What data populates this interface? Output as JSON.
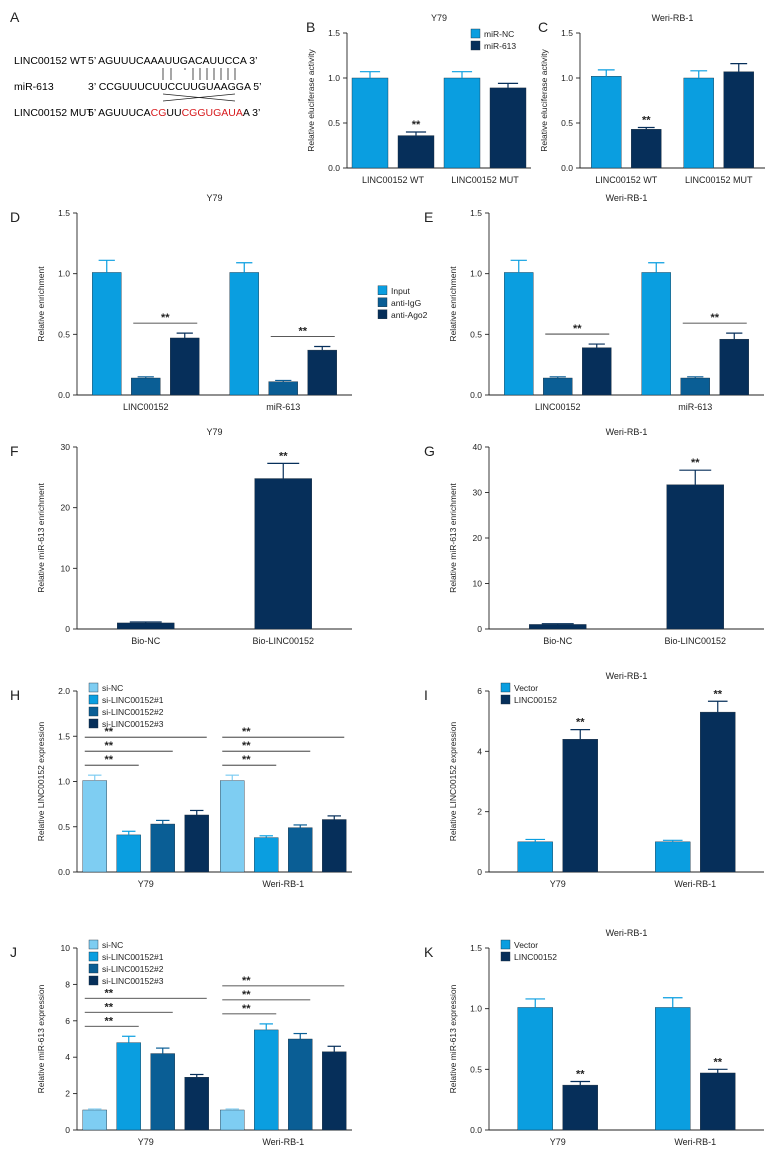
{
  "colors": {
    "light": "#7ecdf2",
    "blue": "#0a9ee0",
    "mid": "#0a5e95",
    "navy": "#062f5a",
    "red": "#d7191c"
  },
  "panelA": {
    "label": "A",
    "rows": [
      {
        "name": "LINC00152 WT",
        "seq": [
          {
            "t": "5’ AGUUUCAAAUUGACAUUCCA 3’",
            "red": false
          }
        ]
      },
      {
        "name": "miR-613",
        "seq": [
          {
            "t": "3’ CCGUUUCUUCCUUGUAAGGA 5’",
            "red": false
          }
        ]
      },
      {
        "name": "LINC00152 MUT",
        "seq": [
          {
            "t": "5’ AGUUUCA",
            "red": false
          },
          {
            "t": "CG",
            "red": true
          },
          {
            "t": "UU",
            "red": false
          },
          {
            "t": "CGGUGAUA",
            "red": true
          },
          {
            "t": "A 3’",
            "red": false
          }
        ]
      }
    ]
  },
  "chart_data": [
    {
      "id": "B",
      "type": "bar",
      "title": "Y79",
      "ylabel": "Relative eluciferase activity",
      "ylim": [
        0,
        1.5
      ],
      "yticks": [
        "0.0",
        "0.5",
        "1.0",
        "1.5"
      ],
      "categories": [
        "LINC00152 WT",
        "LINC00152 MUT"
      ],
      "legend": "top-right",
      "series": [
        {
          "name": "miR-NC",
          "color": "blue",
          "values": [
            1.0,
            1.0
          ],
          "errors": [
            0.07,
            0.07
          ]
        },
        {
          "name": "miR-613",
          "color": "navy",
          "values": [
            0.36,
            0.89
          ],
          "errors": [
            0.04,
            0.05
          ]
        }
      ],
      "annotations": [
        {
          "group": 0,
          "series": 1,
          "text": "**"
        }
      ]
    },
    {
      "id": "C",
      "type": "bar",
      "title": "Weri-RB-1",
      "ylabel": "Relative eluciferase activity",
      "ylim": [
        0,
        1.5
      ],
      "yticks": [
        "0.0",
        "0.5",
        "1.0",
        "1.5"
      ],
      "categories": [
        "LINC00152 WT",
        "LINC00152 MUT"
      ],
      "legend": "none",
      "series": [
        {
          "name": "miR-NC",
          "color": "blue",
          "values": [
            1.02,
            1.0
          ],
          "errors": [
            0.07,
            0.08
          ]
        },
        {
          "name": "miR-613",
          "color": "navy",
          "values": [
            0.43,
            1.07
          ],
          "errors": [
            0.02,
            0.09
          ]
        }
      ],
      "annotations": [
        {
          "group": 0,
          "series": 1,
          "text": "**"
        }
      ]
    },
    {
      "id": "D",
      "type": "bar",
      "title": "Y79",
      "ylabel": "Relative enrichment",
      "ylim": [
        0,
        1.5
      ],
      "yticks": [
        "0.0",
        "0.5",
        "1.0",
        "1.5"
      ],
      "categories": [
        "LINC00152",
        "miR-613"
      ],
      "legend": "right",
      "series": [
        {
          "name": "Input",
          "color": "blue",
          "values": [
            1.01,
            1.01
          ],
          "errors": [
            0.1,
            0.08
          ]
        },
        {
          "name": "anti-IgG",
          "color": "mid",
          "values": [
            0.14,
            0.11
          ],
          "errors": [
            0.01,
            0.01
          ]
        },
        {
          "name": "anti-Ago2",
          "color": "navy",
          "values": [
            0.47,
            0.37
          ],
          "errors": [
            0.04,
            0.03
          ]
        }
      ],
      "brackets": [
        {
          "group": 0,
          "from": 1,
          "to": 2,
          "text": "**"
        },
        {
          "group": 1,
          "from": 1,
          "to": 2,
          "text": "**"
        }
      ]
    },
    {
      "id": "E",
      "type": "bar",
      "title": "Weri-RB-1",
      "ylabel": "Relative enrichment",
      "ylim": [
        0,
        1.5
      ],
      "yticks": [
        "0.0",
        "0.5",
        "1.0",
        "1.5"
      ],
      "categories": [
        "LINC00152",
        "miR-613"
      ],
      "legend": "none",
      "series": [
        {
          "name": "Input",
          "color": "blue",
          "values": [
            1.01,
            1.01
          ],
          "errors": [
            0.1,
            0.08
          ]
        },
        {
          "name": "anti-IgG",
          "color": "mid",
          "values": [
            0.14,
            0.14
          ],
          "errors": [
            0.01,
            0.01
          ]
        },
        {
          "name": "anti-Ago2",
          "color": "navy",
          "values": [
            0.39,
            0.46
          ],
          "errors": [
            0.03,
            0.05
          ]
        }
      ],
      "brackets": [
        {
          "group": 0,
          "from": 1,
          "to": 2,
          "text": "**"
        },
        {
          "group": 1,
          "from": 1,
          "to": 2,
          "text": "**"
        }
      ]
    },
    {
      "id": "F",
      "type": "bar",
      "title": "Y79",
      "ylabel": "Relative miR-613 enrichment",
      "ylim": [
        0,
        30
      ],
      "yticks": [
        "0",
        "10",
        "20",
        "30"
      ],
      "categories": [
        "Bio-NC",
        "Bio-LINC00152"
      ],
      "legend": "none",
      "series": [
        {
          "name": "",
          "color": "navy",
          "values": [
            1.0,
            24.8
          ],
          "errors": [
            0.15,
            2.5
          ]
        }
      ],
      "annotations": [
        {
          "group": 1,
          "series": 0,
          "text": "**"
        }
      ]
    },
    {
      "id": "G",
      "type": "bar",
      "title": "Weri-RB-1",
      "ylabel": "Relative miR-613 enrichment",
      "ylim": [
        0,
        40
      ],
      "yticks": [
        "0",
        "10",
        "20",
        "30",
        "40"
      ],
      "categories": [
        "Bio-NC",
        "Bio-LINC00152"
      ],
      "legend": "none",
      "series": [
        {
          "name": "",
          "color": "navy",
          "values": [
            1.0,
            31.7
          ],
          "errors": [
            0.15,
            3.2
          ]
        }
      ],
      "annotations": [
        {
          "group": 1,
          "series": 0,
          "text": "**"
        }
      ]
    },
    {
      "id": "H",
      "type": "bar",
      "title": "",
      "ylabel": "Relative LINC00152 expression",
      "ylim": [
        0,
        2.0
      ],
      "yticks": [
        "0.0",
        "0.5",
        "1.0",
        "1.5",
        "2.0"
      ],
      "categories": [
        "Y79",
        "Weri-RB-1"
      ],
      "legend": "top-left",
      "series": [
        {
          "name": "si-NC",
          "color": "light",
          "values": [
            1.01,
            1.01
          ],
          "errors": [
            0.06,
            0.06
          ]
        },
        {
          "name": "si-LINC00152#1",
          "color": "blue",
          "values": [
            0.41,
            0.38
          ],
          "errors": [
            0.04,
            0.02
          ]
        },
        {
          "name": "si-LINC00152#2",
          "color": "mid",
          "values": [
            0.53,
            0.49
          ],
          "errors": [
            0.04,
            0.03
          ]
        },
        {
          "name": "si-LINC00152#3",
          "color": "navy",
          "values": [
            0.63,
            0.58
          ],
          "errors": [
            0.05,
            0.04
          ]
        }
      ],
      "brackets": [
        {
          "group": 0,
          "from": 0,
          "to": 1,
          "text": "**"
        },
        {
          "group": 0,
          "from": 0,
          "to": 2,
          "text": "**"
        },
        {
          "group": 0,
          "from": 0,
          "to": 3,
          "text": "**"
        },
        {
          "group": 1,
          "from": 0,
          "to": 1,
          "text": "**"
        },
        {
          "group": 1,
          "from": 0,
          "to": 2,
          "text": "**"
        },
        {
          "group": 1,
          "from": 0,
          "to": 3,
          "text": "**"
        }
      ]
    },
    {
      "id": "I",
      "type": "bar",
      "title": "Weri-RB-1",
      "ylabel": "Relative LINC00152 expression",
      "ylim": [
        0,
        6
      ],
      "yticks": [
        "0",
        "2",
        "4",
        "6"
      ],
      "categories": [
        "Y79",
        "Weri-RB-1"
      ],
      "legend": "top-left",
      "series": [
        {
          "name": "Vector",
          "color": "blue",
          "values": [
            1.0,
            1.0
          ],
          "errors": [
            0.08,
            0.05
          ]
        },
        {
          "name": "LINC00152",
          "color": "navy",
          "values": [
            4.4,
            5.3
          ],
          "errors": [
            0.32,
            0.36
          ]
        }
      ],
      "annotations": [
        {
          "group": 0,
          "series": 1,
          "text": "**"
        },
        {
          "group": 1,
          "series": 1,
          "text": "**"
        }
      ]
    },
    {
      "id": "J",
      "type": "bar",
      "title": "",
      "ylabel": "Relative miR-613 expression",
      "ylim": [
        0,
        10
      ],
      "yticks": [
        "0",
        "2",
        "4",
        "6",
        "8",
        "10"
      ],
      "categories": [
        "Y79",
        "Weri-RB-1"
      ],
      "legend": "top-left",
      "series": [
        {
          "name": "si-NC",
          "color": "light",
          "values": [
            1.1,
            1.1
          ],
          "errors": [
            0.05,
            0.05
          ]
        },
        {
          "name": "si-LINC00152#1",
          "color": "blue",
          "values": [
            4.8,
            5.5
          ],
          "errors": [
            0.35,
            0.33
          ]
        },
        {
          "name": "si-LINC00152#2",
          "color": "mid",
          "values": [
            4.2,
            5.0
          ],
          "errors": [
            0.3,
            0.3
          ]
        },
        {
          "name": "si-LINC00152#3",
          "color": "navy",
          "values": [
            2.9,
            4.3
          ],
          "errors": [
            0.15,
            0.3
          ]
        }
      ],
      "brackets": [
        {
          "group": 0,
          "from": 0,
          "to": 1,
          "text": "**"
        },
        {
          "group": 0,
          "from": 0,
          "to": 2,
          "text": "**"
        },
        {
          "group": 0,
          "from": 0,
          "to": 3,
          "text": "**"
        },
        {
          "group": 1,
          "from": 0,
          "to": 1,
          "text": "**"
        },
        {
          "group": 1,
          "from": 0,
          "to": 2,
          "text": "**"
        },
        {
          "group": 1,
          "from": 0,
          "to": 3,
          "text": "**"
        }
      ]
    },
    {
      "id": "K",
      "type": "bar",
      "title": "Weri-RB-1",
      "ylabel": "Relative miR-613 expression",
      "ylim": [
        0,
        1.5
      ],
      "yticks": [
        "0.0",
        "0.5",
        "1.0",
        "1.5"
      ],
      "categories": [
        "Y79",
        "Weri-RB-1"
      ],
      "legend": "top-left",
      "series": [
        {
          "name": "Vector",
          "color": "blue",
          "values": [
            1.01,
            1.01
          ],
          "errors": [
            0.07,
            0.08
          ]
        },
        {
          "name": "LINC00152",
          "color": "navy",
          "values": [
            0.37,
            0.47
          ],
          "errors": [
            0.03,
            0.03
          ]
        }
      ],
      "annotations": [
        {
          "group": 0,
          "series": 1,
          "text": "**"
        },
        {
          "group": 1,
          "series": 1,
          "text": "**"
        }
      ]
    }
  ]
}
